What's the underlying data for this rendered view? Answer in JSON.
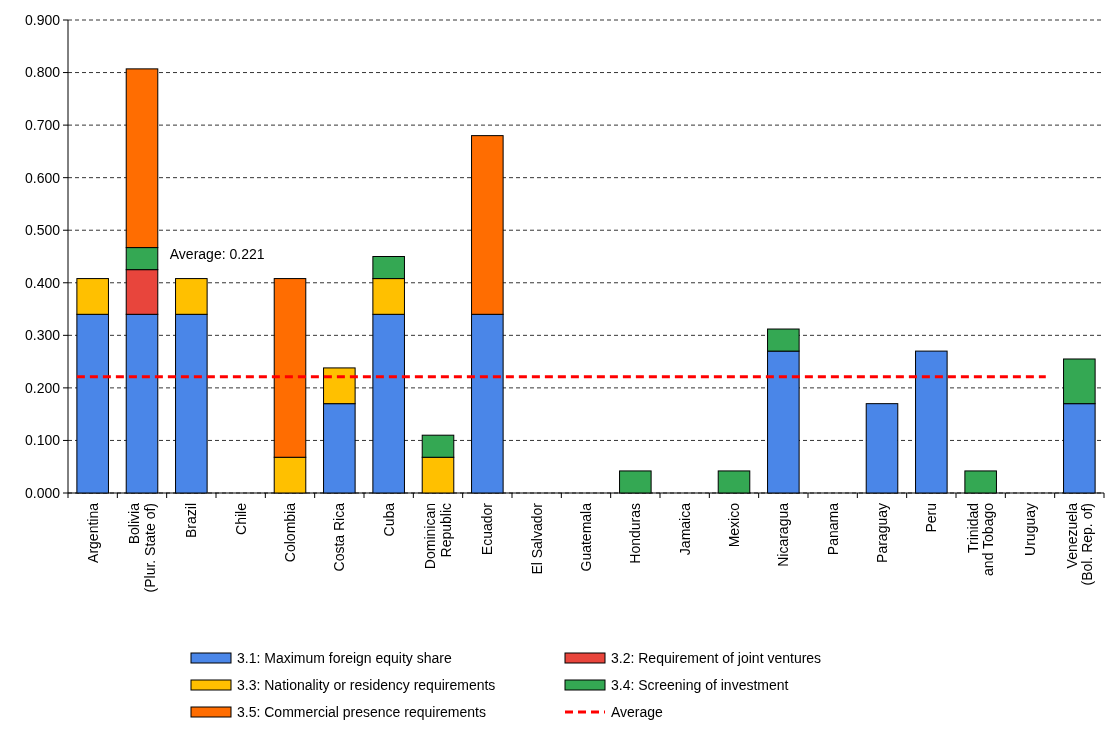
{
  "chart_data": {
    "type": "bar",
    "stacked": true,
    "categories": [
      "Argentina",
      "Bolivia\n(Plur. State of)",
      "Brazil",
      "Chile",
      "Colombia",
      "Costa Rica",
      "Cuba",
      "Dominican\nRepublic",
      "Ecuador",
      "El Salvador",
      "Guatemala",
      "Honduras",
      "Jamaica",
      "Mexico",
      "Nicaragua",
      "Panama",
      "Paraguay",
      "Peru",
      "Trinidad\nand Tobago",
      "Uruguay",
      "Venezuela\n(Bol. Rep. of)"
    ],
    "series": [
      {
        "name": "3.1: Maximum foreign equity share",
        "color": "#4a86e8",
        "values": [
          0.34,
          0.34,
          0.34,
          null,
          null,
          0.17,
          0.34,
          null,
          0.34,
          null,
          null,
          null,
          null,
          null,
          0.27,
          null,
          0.17,
          0.27,
          null,
          null,
          0.17
        ]
      },
      {
        "name": "3.2: Requirement of joint ventures",
        "color": "#e8453c",
        "values": [
          null,
          0.085,
          null,
          null,
          null,
          null,
          null,
          null,
          null,
          null,
          null,
          null,
          null,
          null,
          null,
          null,
          null,
          null,
          null,
          null,
          null
        ]
      },
      {
        "name": "3.3: Nationality or residency requirements",
        "color": "#ffc000",
        "values": [
          0.068,
          null,
          0.068,
          null,
          0.068,
          0.068,
          0.068,
          0.068,
          null,
          null,
          null,
          null,
          null,
          null,
          null,
          null,
          null,
          null,
          null,
          null,
          null
        ]
      },
      {
        "name": "3.4: Screening of investment",
        "color": "#34a853",
        "values": [
          null,
          0.042,
          null,
          null,
          null,
          null,
          0.042,
          0.042,
          null,
          null,
          null,
          0.042,
          null,
          0.042,
          0.042,
          null,
          null,
          null,
          0.042,
          null,
          0.085
        ]
      },
      {
        "name": "3.5: Commercial presence requirements",
        "color": "#ff6d01",
        "values": [
          null,
          0.34,
          null,
          null,
          0.34,
          null,
          null,
          null,
          0.34,
          null,
          null,
          null,
          null,
          null,
          null,
          null,
          null,
          null,
          null,
          null,
          null
        ]
      }
    ],
    "ylim": [
      0,
      0.9
    ],
    "yticks": [
      {
        "value": 0,
        "label": "0.000"
      },
      {
        "value": 0.1,
        "label": "0.100"
      },
      {
        "value": 0.2,
        "label": "0.200"
      },
      {
        "value": 0.3,
        "label": "0.300"
      },
      {
        "value": 0.4,
        "label": "0.400"
      },
      {
        "value": 0.5,
        "label": "0.500"
      },
      {
        "value": 0.6,
        "label": "0.600"
      },
      {
        "value": 0.7,
        "label": "0.700"
      },
      {
        "value": 0.8,
        "label": "0.800"
      },
      {
        "value": 0.9,
        "label": "0.900"
      }
    ],
    "grid": "y",
    "legend": "bottom",
    "ref_lines": [
      {
        "axis": "y",
        "value": 0.221,
        "label": "Average",
        "color": "#ff0000",
        "line_style": "dashed"
      }
    ],
    "annotations": [
      "Average: 0.221"
    ]
  }
}
